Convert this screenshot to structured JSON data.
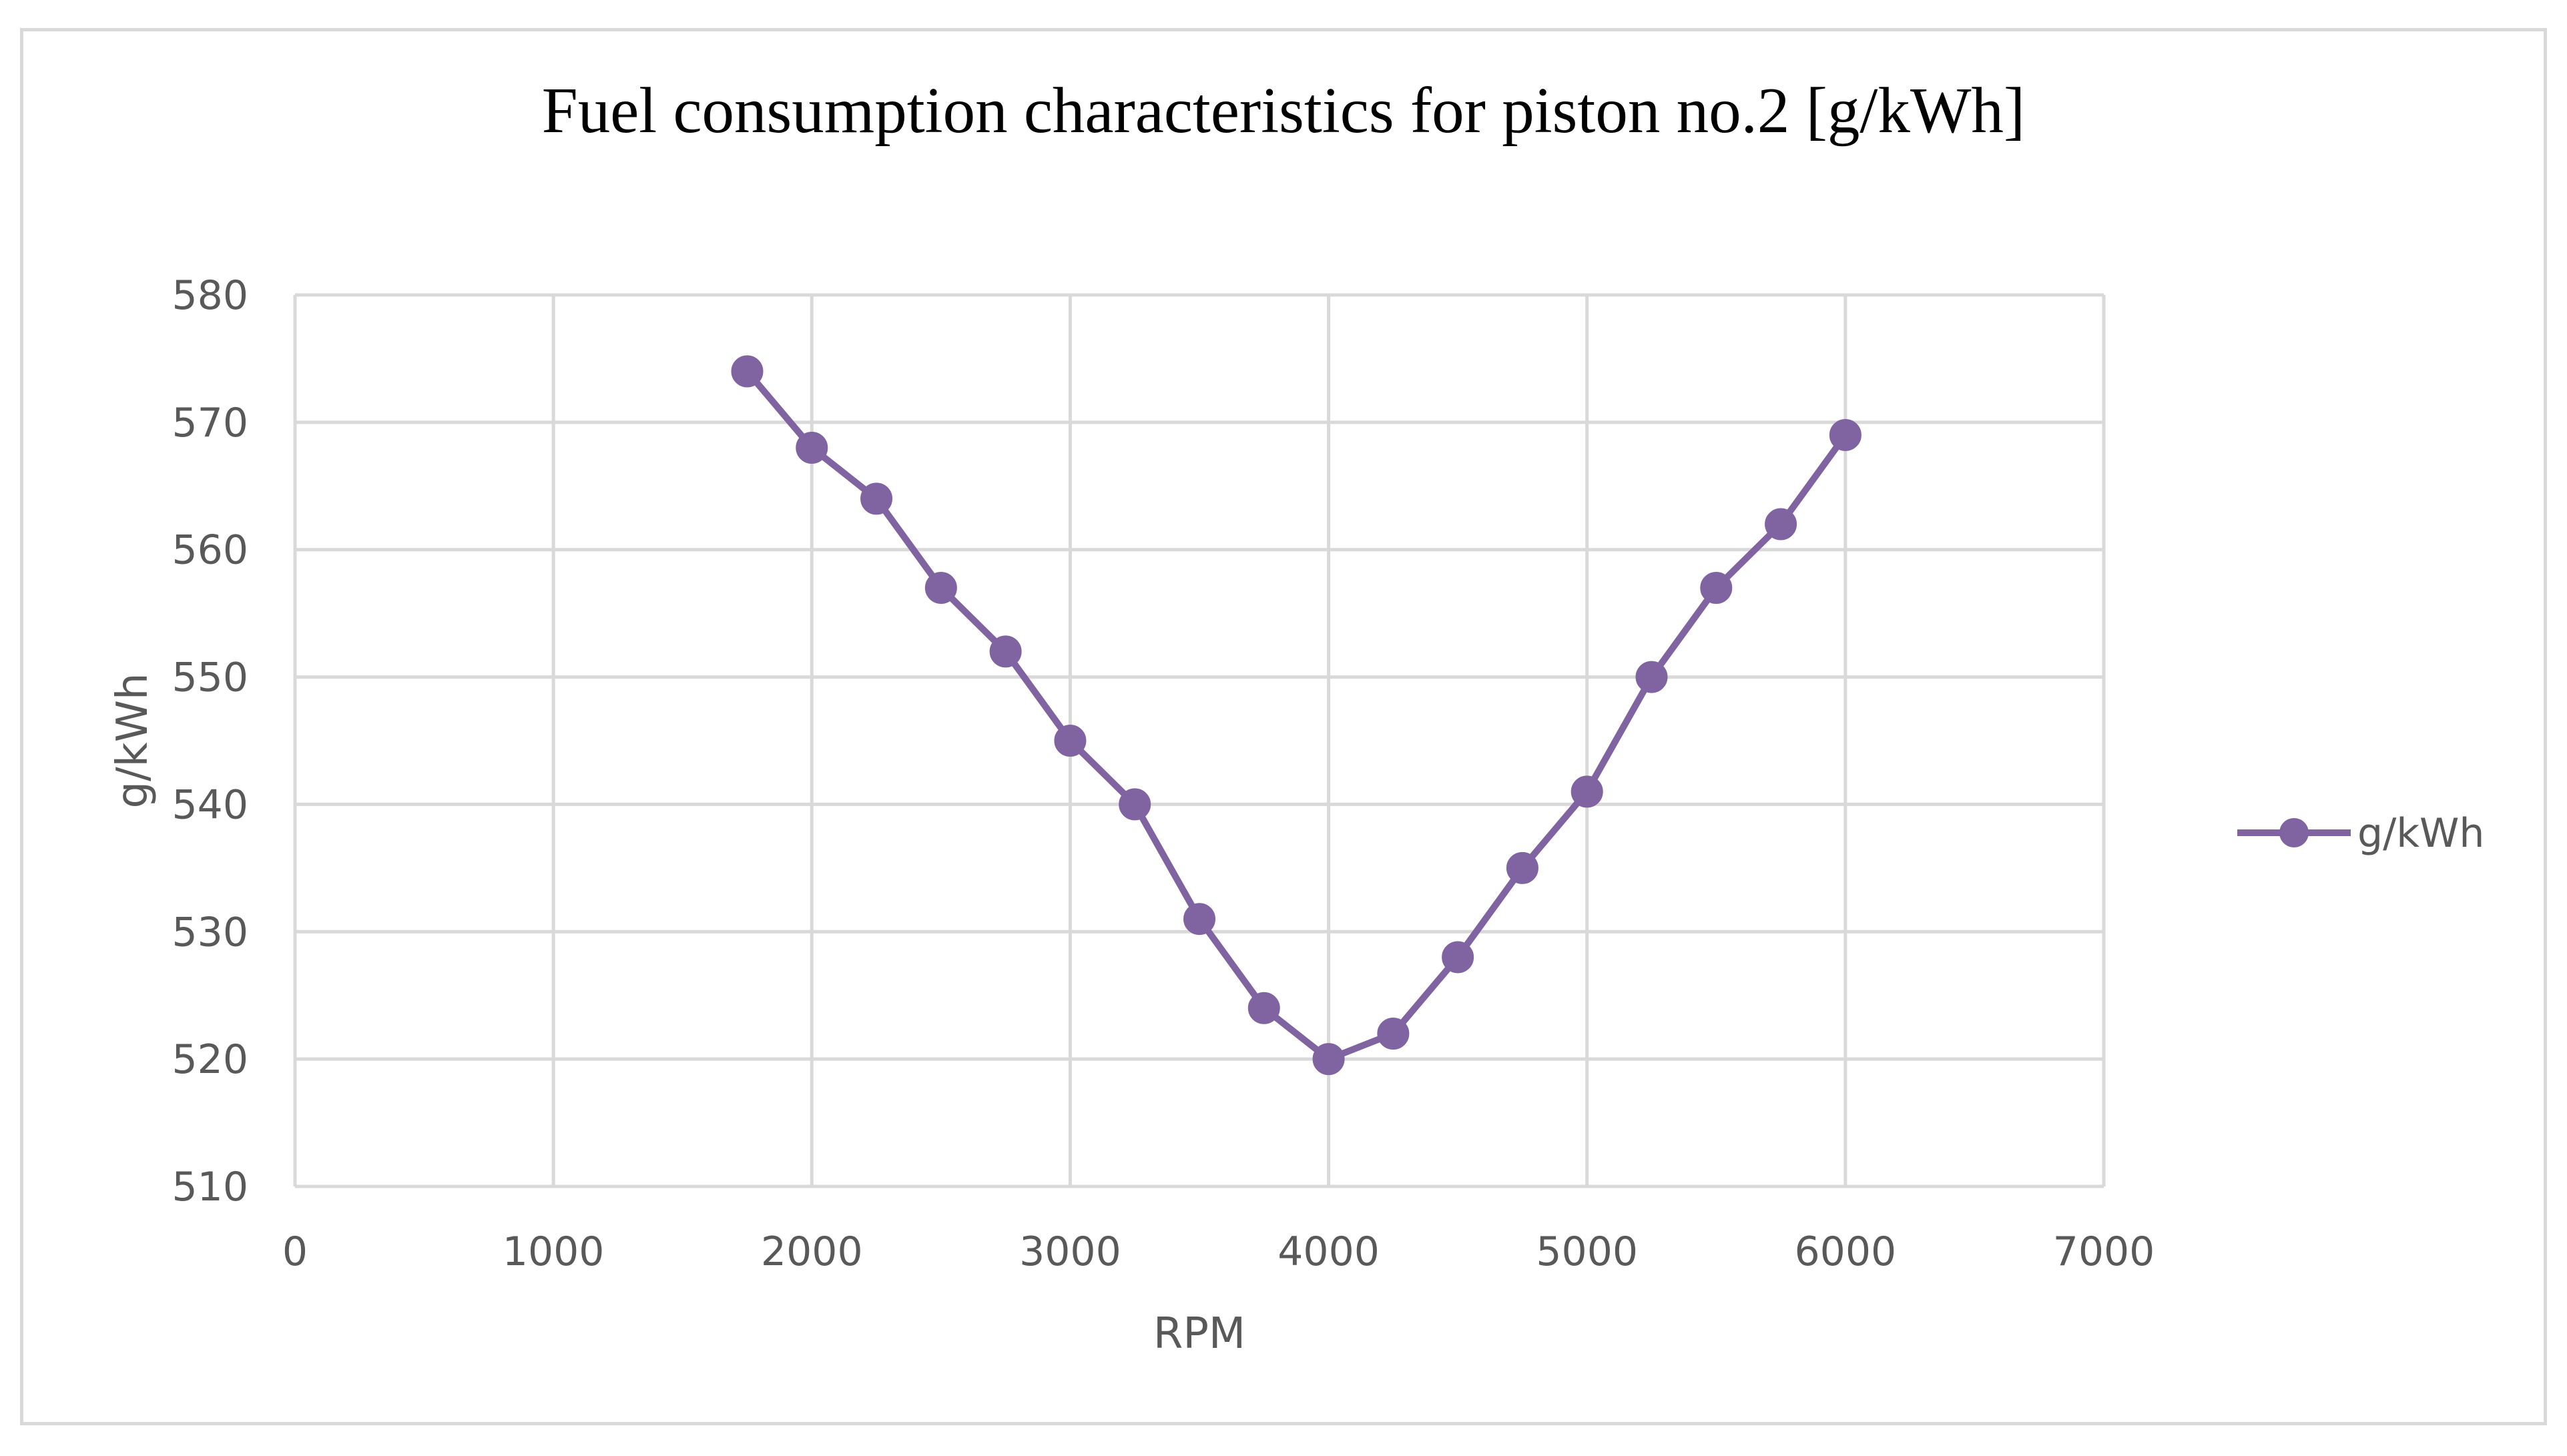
{
  "chart_data": {
    "type": "line",
    "title": "Fuel consumption characteristics for piston no.2 [g/kWh]",
    "xlabel": "RPM",
    "ylabel": "g/kWh",
    "xlim": [
      0,
      7000
    ],
    "ylim": [
      510,
      580
    ],
    "x_ticks": [
      0,
      1000,
      2000,
      3000,
      4000,
      5000,
      6000,
      7000
    ],
    "y_ticks": [
      510,
      520,
      530,
      540,
      550,
      560,
      570,
      580
    ],
    "grid": true,
    "legend_position": "right",
    "series": [
      {
        "name": "g/kWh",
        "color": "#8064a2",
        "marker": "circle",
        "x": [
          1750,
          2000,
          2250,
          2500,
          2750,
          3000,
          3250,
          3500,
          3750,
          4000,
          4250,
          4500,
          4750,
          5000,
          5250,
          5500,
          5750,
          6000
        ],
        "values": [
          574,
          568,
          564,
          557,
          552,
          545,
          540,
          531,
          524,
          520,
          522,
          528,
          535,
          541,
          550,
          557,
          562,
          569
        ]
      }
    ]
  }
}
